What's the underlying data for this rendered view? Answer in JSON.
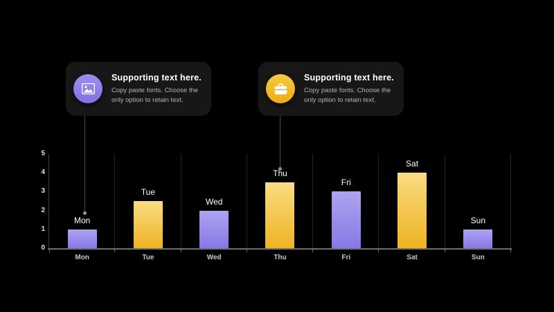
{
  "callouts": [
    {
      "title": "Supporting text here.",
      "body": "Copy paste fonts. Choose the only option to retain text.",
      "icon": "image-icon",
      "accent": "#8d7ee9"
    },
    {
      "title": "Supporting text here.",
      "body": "Copy paste fonts. Choose the only option to retain text.",
      "icon": "briefcase-icon",
      "accent": "#f2b724"
    }
  ],
  "chart_data": {
    "type": "bar",
    "categories": [
      "Mon",
      "Tue",
      "Wed",
      "Thu",
      "Fri",
      "Sat",
      "Sun"
    ],
    "values": [
      1,
      2.5,
      2,
      3.5,
      3,
      4,
      1
    ],
    "bar_labels": [
      "Mon",
      "Tue",
      "Wed",
      "Thu",
      "Fri",
      "Sat",
      "Sun"
    ],
    "bar_color_keys": [
      "purple",
      "yellow",
      "purple",
      "yellow",
      "purple",
      "yellow",
      "purple"
    ],
    "title": "",
    "xlabel": "",
    "ylabel": "",
    "ylim": [
      0,
      5
    ],
    "yticks": [
      0,
      1,
      2,
      3,
      4,
      5
    ],
    "grid": "vertical-category-separators",
    "legend": "none",
    "palette": {
      "purple": [
        "#ada4f0",
        "#8678e6"
      ],
      "yellow": [
        "#f9dc82",
        "#efb322"
      ]
    }
  }
}
